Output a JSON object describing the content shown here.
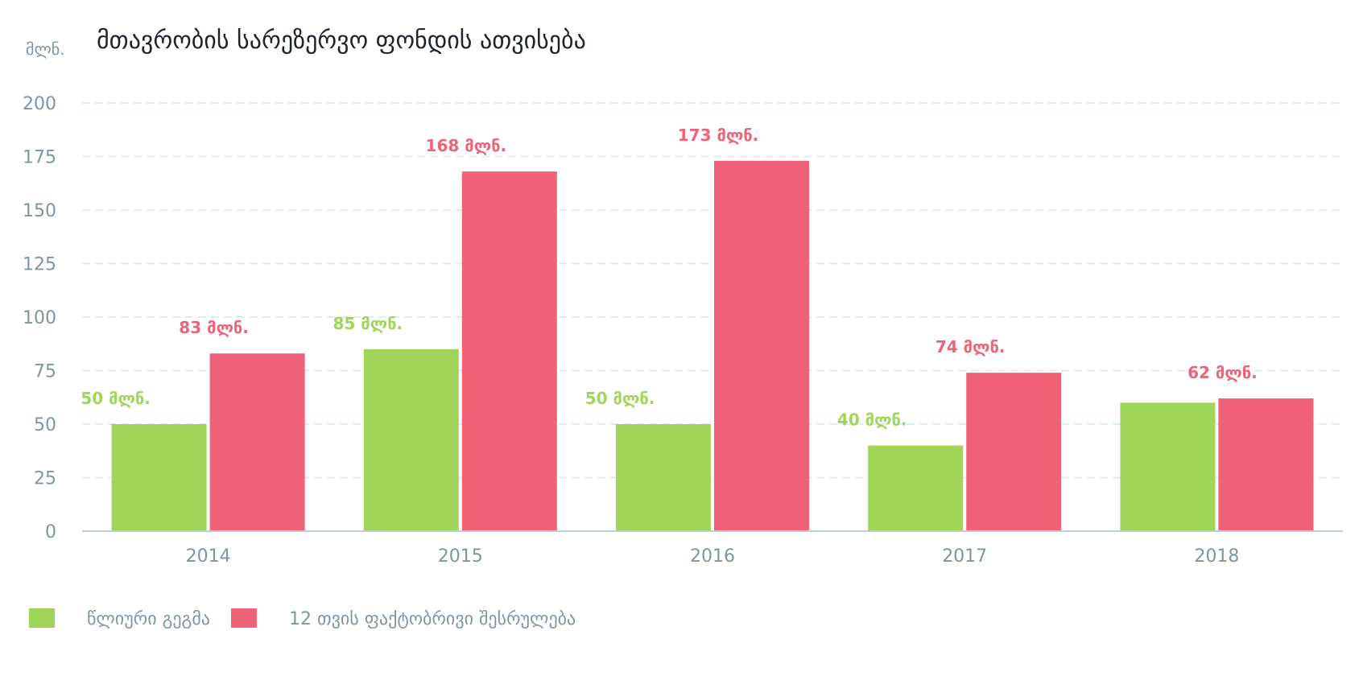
{
  "chart_data": {
    "type": "bar",
    "title": "მთავრობის სარეზერვო ფონდის ათვისება",
    "ylabel": "მლნ.",
    "xlabel": "",
    "categories": [
      "2014",
      "2015",
      "2016",
      "2017",
      "2018"
    ],
    "ylim": [
      0,
      200
    ],
    "yticks": [
      0,
      25,
      50,
      75,
      100,
      125,
      150,
      175,
      200
    ],
    "grid": true,
    "legend_position": "bottom-left",
    "series": [
      {
        "name": "წლიური გეგმა",
        "color": "#a0d55a",
        "values": [
          50,
          85,
          50,
          40,
          60
        ],
        "data_labels": [
          "50 მლნ.",
          "85 მლნ.",
          "50 მლნ.",
          "40 მლნ.",
          null
        ]
      },
      {
        "name": "12 თვის ფაქტობრივი შესრულება",
        "color": "#f06278",
        "values": [
          83,
          168,
          173,
          74,
          62
        ],
        "data_labels": [
          "83 მლნ.",
          "168 მლნ.",
          "173 მლნ.",
          "74 მლნ.",
          "62 მლნ."
        ]
      }
    ]
  },
  "colors": {
    "grid": "#d9edf6",
    "axis": "#b9cfe0",
    "tick_text": "#7f95a3",
    "title_text": "#1f2330"
  }
}
